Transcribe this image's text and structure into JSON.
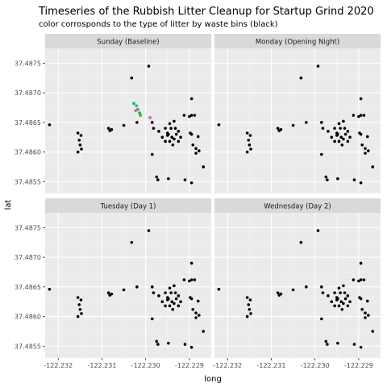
{
  "chart_data": {
    "type": "scatter",
    "title": "Timeseries of the Rubbish Litter Cleanup for Startup Grind 2020",
    "subtitle": "color corrosponds to the type of litter by waste bins (black)",
    "xlabel": "long",
    "ylabel": "lat",
    "xlim": [
      -122.2323,
      -122.2285
    ],
    "ylim": [
      37.4853,
      37.48775
    ],
    "x_ticks": [
      -122.232,
      -122.231,
      -122.23,
      -122.229
    ],
    "x_tick_labels": [
      "-122.232",
      "-122.231",
      "-122.230",
      "-122.229"
    ],
    "y_ticks": [
      37.4855,
      37.486,
      37.4865,
      37.487,
      37.4875
    ],
    "y_tick_labels": [
      "37.4855",
      "37.4860",
      "37.4865",
      "37.4870",
      "37.4875"
    ],
    "grid": true,
    "facets": [
      {
        "label": "Sunday (Baseline)"
      },
      {
        "label": "Monday (Opening Night)"
      },
      {
        "label": "Tuesday (Day 1)"
      },
      {
        "label": "Wednesday (Day 2)"
      }
    ],
    "colors": {
      "waste_bin": "#000000",
      "litter_green": "#2db34a",
      "litter_teal": "#1fb8a5",
      "litter_pink": "#e05ad6"
    },
    "bins": [
      [
        -122.2322,
        37.48646
      ],
      [
        -122.23155,
        37.48632
      ],
      [
        -122.23148,
        37.48628
      ],
      [
        -122.23152,
        37.4862
      ],
      [
        -122.2315,
        37.48612
      ],
      [
        -122.23147,
        37.48605
      ],
      [
        -122.23155,
        37.486
      ],
      [
        -122.23085,
        37.4864
      ],
      [
        -122.23078,
        37.48638
      ],
      [
        -122.23082,
        37.48636
      ],
      [
        -122.2305,
        37.48645
      ],
      [
        -122.2302,
        37.4865
      ],
      [
        -122.23032,
        37.48725
      ],
      [
        -122.22993,
        37.48745
      ],
      [
        -122.22985,
        37.4865
      ],
      [
        -122.22982,
        37.4864
      ],
      [
        -122.2297,
        37.48635
      ],
      [
        -122.22962,
        37.48625
      ],
      [
        -122.22955,
        37.4864
      ],
      [
        -122.22955,
        37.48618
      ],
      [
        -122.2295,
        37.48628
      ],
      [
        -122.22948,
        37.4863
      ],
      [
        -122.22945,
        37.48618
      ],
      [
        -122.22942,
        37.4864
      ],
      [
        -122.2294,
        37.48625
      ],
      [
        -122.22938,
        37.48612
      ],
      [
        -122.22935,
        37.48622
      ],
      [
        -122.22932,
        37.4864
      ],
      [
        -122.2293,
        37.4863
      ],
      [
        -122.22925,
        37.48618
      ],
      [
        -122.22925,
        37.48635
      ],
      [
        -122.2292,
        37.48625
      ],
      [
        -122.2295,
        37.48632
      ],
      [
        -122.22945,
        37.48648
      ],
      [
        -122.22935,
        37.48652
      ],
      [
        -122.22985,
        37.48596
      ],
      [
        -122.22898,
        37.48632
      ],
      [
        -122.22895,
        37.4863
      ],
      [
        -122.2288,
        37.48626
      ],
      [
        -122.22912,
        37.48662
      ],
      [
        -122.229,
        37.4866
      ],
      [
        -122.22895,
        37.48662
      ],
      [
        -122.22888,
        37.48662
      ],
      [
        -122.22895,
        37.4869
      ],
      [
        -122.22892,
        37.48612
      ],
      [
        -122.22885,
        37.48606
      ],
      [
        -122.22878,
        37.48602
      ],
      [
        -122.22885,
        37.48598
      ],
      [
        -122.22975,
        37.48558
      ],
      [
        -122.22972,
        37.48553
      ],
      [
        -122.22948,
        37.48555
      ],
      [
        -122.2291,
        37.48553
      ],
      [
        -122.22895,
        37.48548
      ],
      [
        -122.22868,
        37.48575
      ]
    ],
    "sunday_litter": [
      {
        "x": -122.23027,
        "y": 37.48682,
        "color": "litter_green"
      },
      {
        "x": -122.23021,
        "y": 37.48678,
        "color": "litter_teal"
      },
      {
        "x": -122.23018,
        "y": 37.48672,
        "color": "litter_green"
      },
      {
        "x": -122.23023,
        "y": 37.4867,
        "color": "litter_pink"
      },
      {
        "x": -122.23014,
        "y": 37.48666,
        "color": "litter_green"
      },
      {
        "x": -122.23012,
        "y": 37.48662,
        "color": "litter_green"
      },
      {
        "x": -122.2299,
        "y": 37.48658,
        "color": "litter_pink"
      }
    ]
  }
}
